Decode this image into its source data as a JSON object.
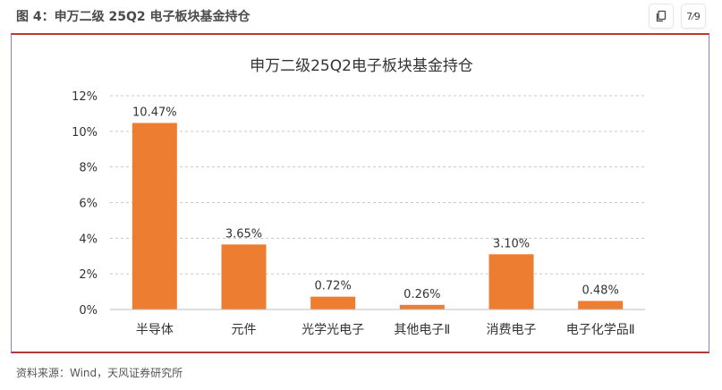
{
  "figure": {
    "title": "图 4：申万二级 25Q2 电子板块基金持仓",
    "source": "资料来源：Wind，天风证券研究所"
  },
  "toolbar": {
    "copy_icon": "copy-icon",
    "page_indicator": "7⁄9"
  },
  "chart_data": {
    "type": "bar",
    "title": "申万二级25Q2电子板块基金持仓",
    "categories": [
      "半导体",
      "元件",
      "光学光电子",
      "其他电子Ⅱ",
      "消费电子",
      "电子化学品Ⅱ"
    ],
    "values": [
      10.47,
      3.65,
      0.72,
      0.26,
      3.1,
      0.48
    ],
    "data_labels": [
      "10.47%",
      "3.65%",
      "0.72%",
      "0.26%",
      "3.10%",
      "0.48%"
    ],
    "xlabel": "",
    "ylabel": "",
    "ylim": [
      0,
      12
    ],
    "yticks": [
      "0%",
      "2%",
      "4%",
      "6%",
      "8%",
      "10%",
      "12%"
    ],
    "grid": true,
    "bar_color": "#ED7D31"
  }
}
